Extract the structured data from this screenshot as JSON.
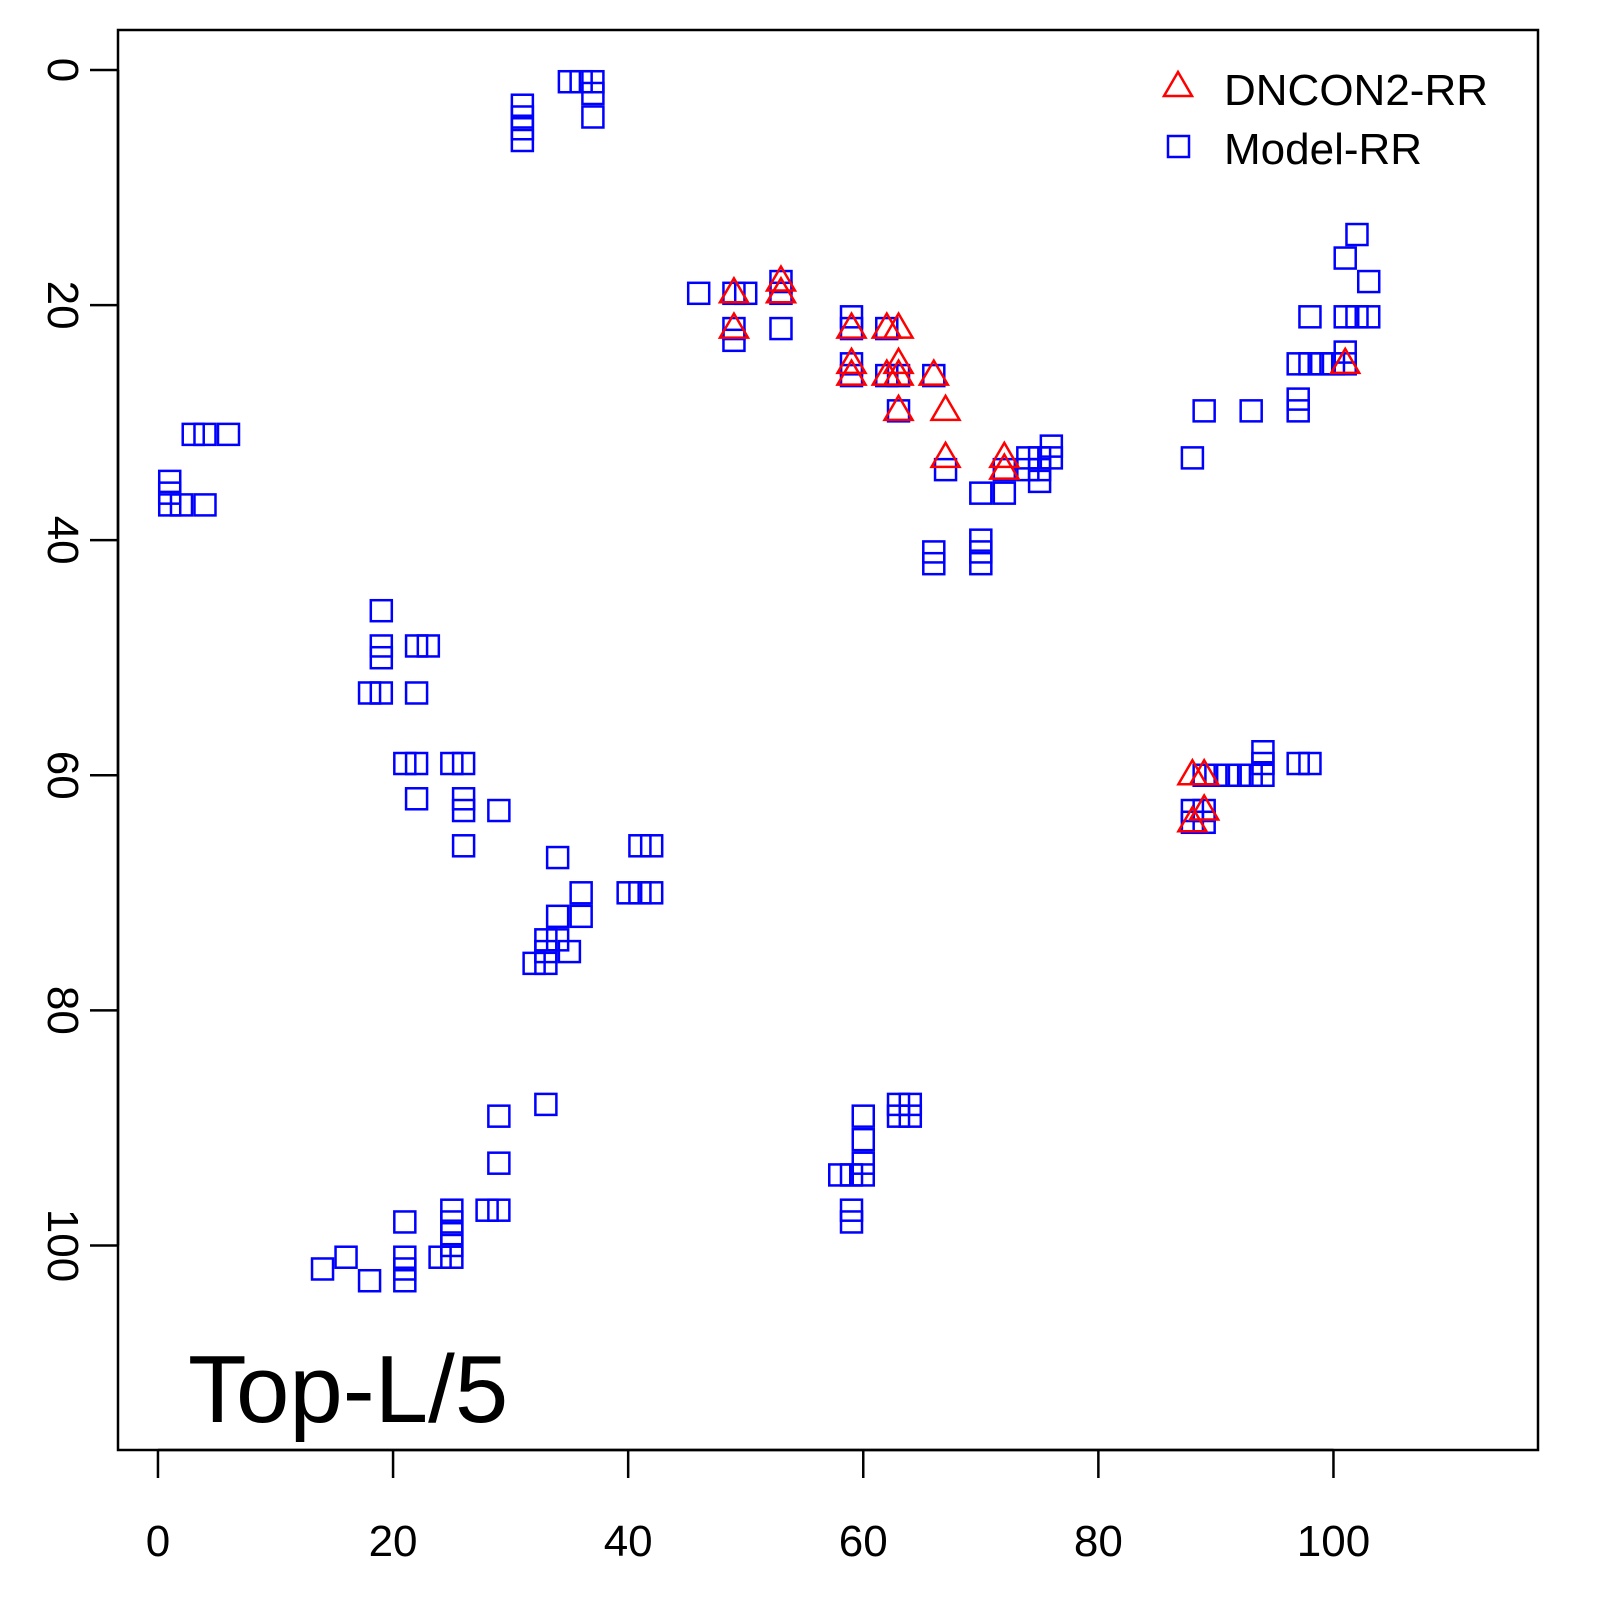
{
  "chart_data": {
    "type": "scatter",
    "title": "",
    "annotation": "Top-L/5",
    "xlabel": "",
    "ylabel": "",
    "xlim": [
      -3.4,
      117.4
    ],
    "ylim": [
      -3.4,
      117.4
    ],
    "y_inverted": true,
    "grid": false,
    "legend_position": "top-right",
    "x_ticks": [
      "0",
      "20",
      "40",
      "60",
      "80",
      "100"
    ],
    "y_ticks": [
      "0",
      "20",
      "40",
      "60",
      "80",
      "100"
    ],
    "x_tick_values": [
      0,
      20,
      40,
      60,
      80,
      100
    ],
    "y_tick_values": [
      0,
      20,
      40,
      60,
      80,
      100
    ],
    "series": [
      {
        "name": "DNCON2-RR",
        "marker": "triangle",
        "color": "#ff0000",
        "points": [
          [
            49,
            19
          ],
          [
            49,
            22
          ],
          [
            53,
            18
          ],
          [
            53,
            19
          ],
          [
            59,
            22
          ],
          [
            59,
            25
          ],
          [
            59,
            26
          ],
          [
            62,
            22
          ],
          [
            63,
            22
          ],
          [
            62,
            26
          ],
          [
            63,
            25
          ],
          [
            63,
            26
          ],
          [
            63,
            29
          ],
          [
            66,
            26
          ],
          [
            67,
            29
          ],
          [
            67,
            33
          ],
          [
            72,
            33
          ],
          [
            72,
            34
          ],
          [
            101,
            25
          ],
          [
            88,
            60
          ],
          [
            89,
            60
          ],
          [
            89,
            63
          ],
          [
            88,
            64
          ]
        ]
      },
      {
        "name": "Model-RR",
        "marker": "square",
        "color": "#0000ff",
        "points": [
          [
            31,
            3
          ],
          [
            31,
            4
          ],
          [
            31,
            5
          ],
          [
            31,
            6
          ],
          [
            35,
            1
          ],
          [
            36,
            1
          ],
          [
            37,
            1
          ],
          [
            37,
            2
          ],
          [
            37,
            4
          ],
          [
            1,
            35
          ],
          [
            1,
            36
          ],
          [
            1,
            37
          ],
          [
            2,
            37
          ],
          [
            4,
            37
          ],
          [
            3,
            31
          ],
          [
            4,
            31
          ],
          [
            6,
            31
          ],
          [
            19,
            46
          ],
          [
            19,
            49
          ],
          [
            19,
            50
          ],
          [
            22,
            49
          ],
          [
            23,
            49
          ],
          [
            18,
            53
          ],
          [
            19,
            53
          ],
          [
            22,
            53
          ],
          [
            21,
            59
          ],
          [
            22,
            59
          ],
          [
            22,
            62
          ],
          [
            25,
            59
          ],
          [
            26,
            59
          ],
          [
            26,
            62
          ],
          [
            26,
            63
          ],
          [
            26,
            66
          ],
          [
            29,
            63
          ],
          [
            34,
            67
          ],
          [
            36,
            70
          ],
          [
            36,
            72
          ],
          [
            34,
            72
          ],
          [
            33,
            74
          ],
          [
            34,
            74
          ],
          [
            33,
            75
          ],
          [
            35,
            75
          ],
          [
            32,
            76
          ],
          [
            33,
            76
          ],
          [
            40,
            70
          ],
          [
            41,
            70
          ],
          [
            42,
            70
          ],
          [
            41,
            66
          ],
          [
            42,
            66
          ],
          [
            14,
            102
          ],
          [
            16,
            101
          ],
          [
            18,
            103
          ],
          [
            21,
            98
          ],
          [
            21,
            101
          ],
          [
            21,
            102
          ],
          [
            21,
            103
          ],
          [
            24,
            101
          ],
          [
            25,
            101
          ],
          [
            25,
            97
          ],
          [
            25,
            98
          ],
          [
            25,
            99
          ],
          [
            25,
            100
          ],
          [
            28,
            97
          ],
          [
            29,
            97
          ],
          [
            29,
            93
          ],
          [
            29,
            89
          ],
          [
            33,
            88
          ],
          [
            58,
            94
          ],
          [
            59,
            94
          ],
          [
            60,
            94
          ],
          [
            59,
            97
          ],
          [
            59,
            98
          ],
          [
            60,
            89
          ],
          [
            60,
            91
          ],
          [
            60,
            93
          ],
          [
            63,
            88
          ],
          [
            64,
            88
          ],
          [
            63,
            89
          ],
          [
            64,
            89
          ],
          [
            46,
            19
          ],
          [
            49,
            19
          ],
          [
            50,
            19
          ],
          [
            49,
            22
          ],
          [
            49,
            23
          ],
          [
            53,
            18
          ],
          [
            53,
            19
          ],
          [
            53,
            22
          ],
          [
            59,
            21
          ],
          [
            59,
            22
          ],
          [
            59,
            25
          ],
          [
            59,
            26
          ],
          [
            62,
            22
          ],
          [
            62,
            26
          ],
          [
            63,
            26
          ],
          [
            63,
            29
          ],
          [
            66,
            26
          ],
          [
            67,
            34
          ],
          [
            66,
            41
          ],
          [
            66,
            42
          ],
          [
            70,
            36
          ],
          [
            70,
            40
          ],
          [
            70,
            41
          ],
          [
            70,
            42
          ],
          [
            72,
            36
          ],
          [
            72,
            34
          ],
          [
            74,
            33
          ],
          [
            74,
            34
          ],
          [
            75,
            33
          ],
          [
            75,
            34
          ],
          [
            75,
            35
          ],
          [
            76,
            32
          ],
          [
            76,
            33
          ],
          [
            88,
            33
          ],
          [
            89,
            29
          ],
          [
            93,
            29
          ],
          [
            97,
            28
          ],
          [
            97,
            29
          ],
          [
            97,
            25
          ],
          [
            98,
            25
          ],
          [
            99,
            25
          ],
          [
            100,
            25
          ],
          [
            98,
            21
          ],
          [
            101,
            16
          ],
          [
            102,
            14
          ],
          [
            103,
            18
          ],
          [
            101,
            21
          ],
          [
            102,
            21
          ],
          [
            103,
            21
          ],
          [
            101,
            24
          ],
          [
            101,
            25
          ],
          [
            88,
            63
          ],
          [
            88,
            64
          ],
          [
            89,
            63
          ],
          [
            89,
            64
          ],
          [
            89,
            60
          ],
          [
            90,
            60
          ],
          [
            91,
            60
          ],
          [
            92,
            60
          ],
          [
            93,
            60
          ],
          [
            94,
            58
          ],
          [
            94,
            59
          ],
          [
            94,
            60
          ],
          [
            97,
            59
          ],
          [
            98,
            59
          ]
        ]
      }
    ]
  }
}
